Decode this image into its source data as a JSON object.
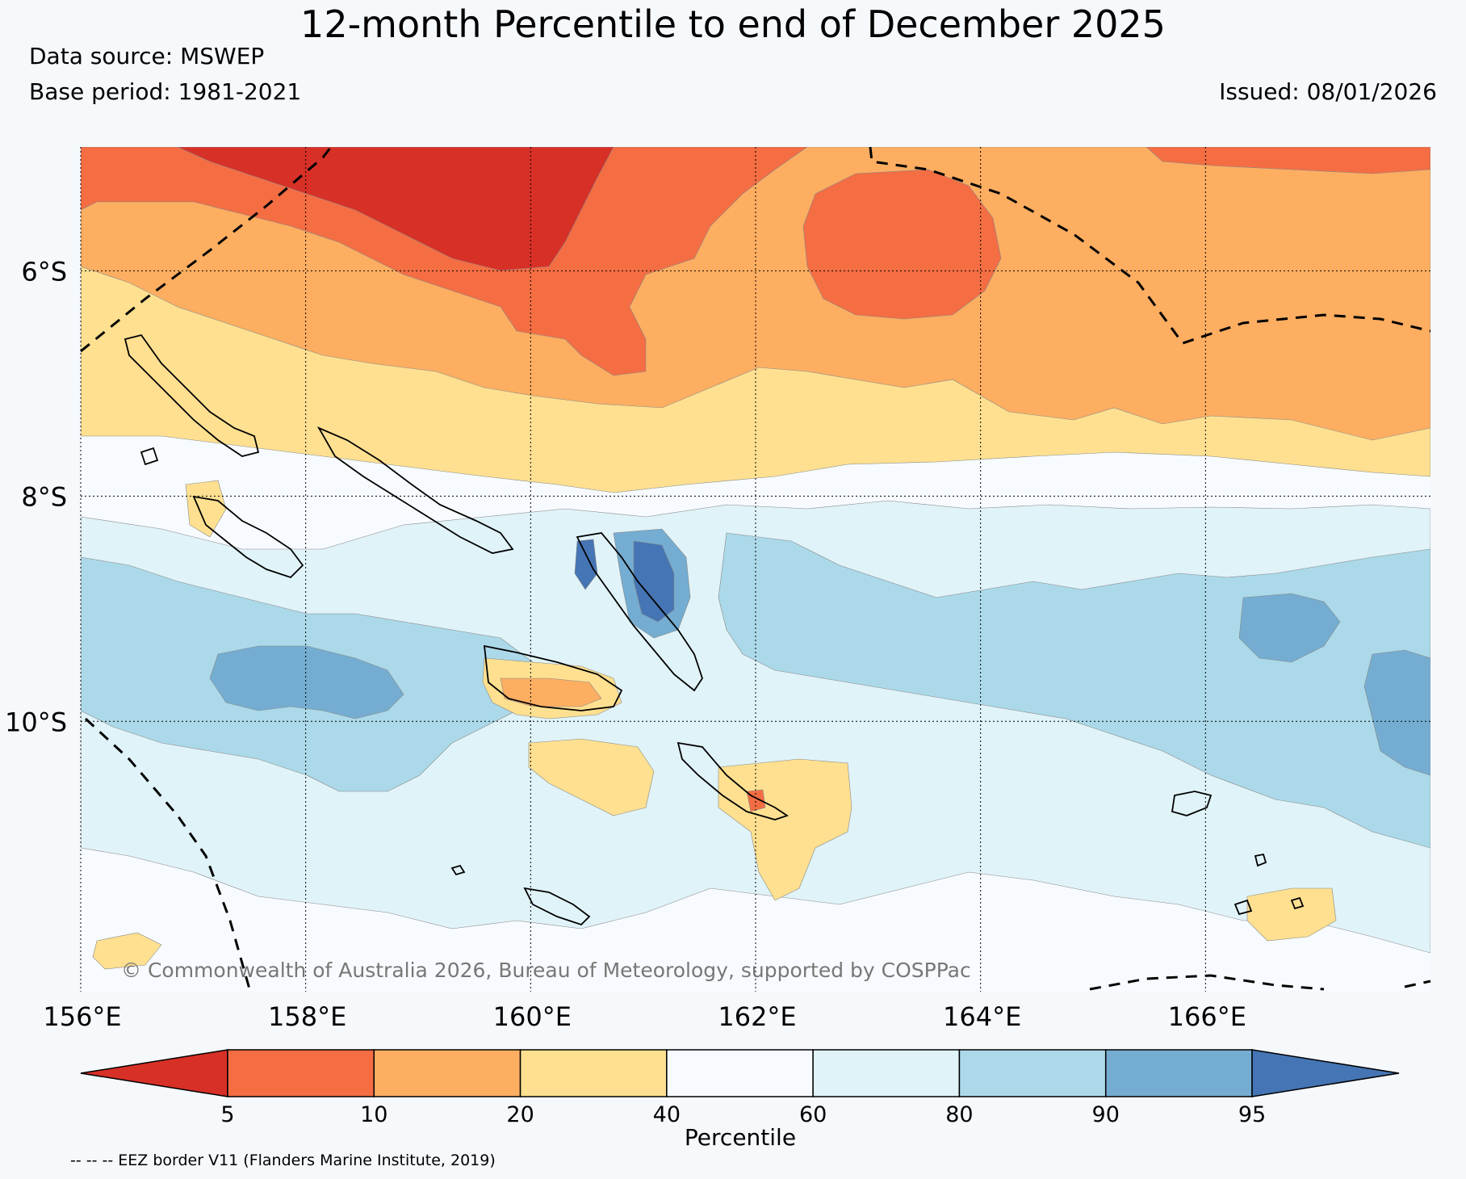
{
  "title": "12-month Percentile to end of December 2025",
  "data_source": "Data source: MSWEP",
  "base_period": "Base period: 1981-2021",
  "issued": "Issued: 08/01/2026",
  "copyright": "© Commonwealth of Australia 2026, Bureau of Meteorology, supported by COSPPac",
  "eez_note": "-- -- -- EEZ border V11 (Flanders Marine Institute, 2019)",
  "map": {
    "lon_range": [
      156,
      168
    ],
    "lat_range": [
      -4.9,
      -12.4
    ],
    "lat_ticks": [
      {
        "value": -6,
        "label": "6°S"
      },
      {
        "value": -8,
        "label": "8°S"
      },
      {
        "value": -10,
        "label": "10°S"
      }
    ],
    "lon_ticks": [
      {
        "value": 156,
        "label": "156°E"
      },
      {
        "value": 158,
        "label": "158°E"
      },
      {
        "value": 160,
        "label": "160°E"
      },
      {
        "value": 162,
        "label": "162°E"
      },
      {
        "value": 164,
        "label": "164°E"
      },
      {
        "value": 166,
        "label": "166°E"
      }
    ]
  },
  "colorbar": {
    "label": "Percentile",
    "boundaries": [
      "5",
      "10",
      "20",
      "40",
      "60",
      "80",
      "90",
      "95"
    ],
    "colors": [
      "#d73027",
      "#f46d43",
      "#fdae61",
      "#fee090",
      "#f7fbff",
      "#e0f3f8",
      "#abd9e9",
      "#74add1",
      "#4575b4"
    ]
  }
}
